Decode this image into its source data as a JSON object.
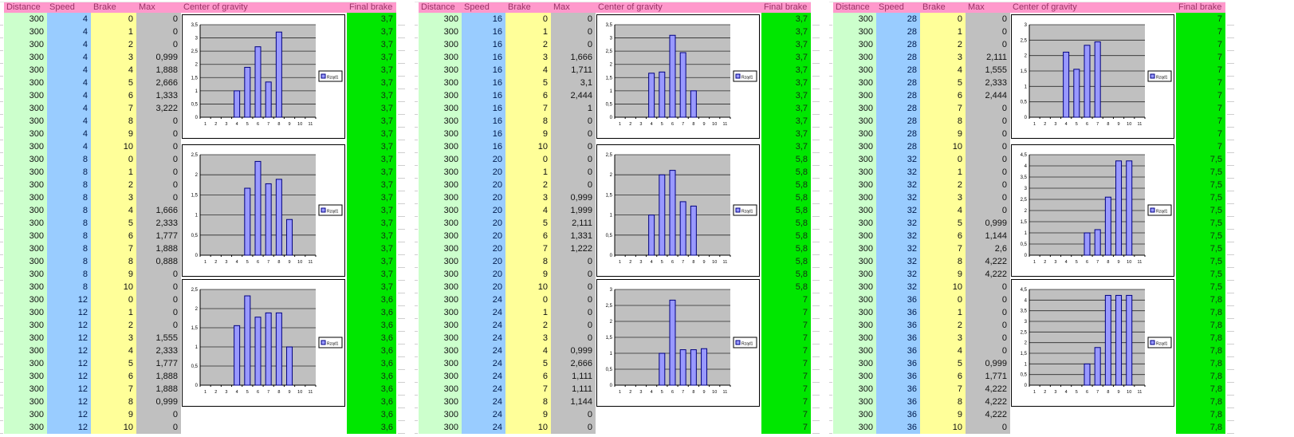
{
  "headers": {
    "distance": "Distance",
    "speed": "Speed",
    "brake": "Brake",
    "max": "Max",
    "cog": "Center of gravity",
    "final": "Final brake"
  },
  "legend_label": "Rząd1",
  "colors": {
    "header_bg": "#FF99CC",
    "header_text": "#993366",
    "distance_bg": "#CCFFCC",
    "speed_bg": "#99CCFF",
    "brake_bg": "#FFFF99",
    "max_bg": "#C0C0C0",
    "final_bg": "#00E700",
    "chart_plot_bg": "#C0C0C0",
    "bar_fill": "#9999FF",
    "bar_border": "#000080"
  },
  "panels": [
    {
      "distance": "300",
      "brake_values": [
        "0",
        "1",
        "2",
        "3",
        "4",
        "5",
        "6",
        "7",
        "8",
        "9",
        "10"
      ],
      "blocks": [
        {
          "speed": "4",
          "final": "3,7",
          "max": [
            "0",
            "0",
            "0",
            "0,999",
            "1,888",
            "2,666",
            "1,333",
            "3,222",
            "0",
            "0",
            "0"
          ]
        },
        {
          "speed": "8",
          "final": "3,7",
          "max": [
            "0",
            "0",
            "0",
            "0",
            "1,666",
            "2,333",
            "1,777",
            "1,888",
            "0,888",
            "0",
            "0"
          ]
        },
        {
          "speed": "12",
          "final": "3,6",
          "max": [
            "0",
            "0",
            "0",
            "1,555",
            "2,333",
            "1,777",
            "1,888",
            "1,888",
            "0,999",
            "0",
            "0"
          ]
        }
      ]
    },
    {
      "distance": "300",
      "brake_values": [
        "0",
        "1",
        "2",
        "3",
        "4",
        "5",
        "6",
        "7",
        "8",
        "9",
        "10"
      ],
      "blocks": [
        {
          "speed": "16",
          "final": "3,7",
          "max": [
            "0",
            "0",
            "0",
            "1,666",
            "1,711",
            "3,1",
            "2,444",
            "1",
            "0",
            "0",
            "0"
          ]
        },
        {
          "speed": "20",
          "final": "5,8",
          "max": [
            "0",
            "0",
            "0",
            "0,999",
            "1,999",
            "2,111",
            "1,331",
            "1,222",
            "0",
            "0",
            "0"
          ]
        },
        {
          "speed": "24",
          "final": "7",
          "max": [
            "0",
            "0",
            "0",
            "0",
            "0,999",
            "2,666",
            "1,111",
            "1,111",
            "1,144",
            "0",
            "0"
          ]
        }
      ]
    },
    {
      "distance": "300",
      "brake_values": [
        "0",
        "1",
        "2",
        "3",
        "4",
        "5",
        "6",
        "7",
        "8",
        "9",
        "10"
      ],
      "blocks": [
        {
          "speed": "28",
          "final": "7",
          "max": [
            "0",
            "0",
            "0",
            "2,111",
            "1,555",
            "2,333",
            "2,444",
            "0",
            "0",
            "0",
            "0"
          ]
        },
        {
          "speed": "32",
          "final": "7,5",
          "max": [
            "0",
            "0",
            "0",
            "0",
            "0",
            "0,999",
            "1,144",
            "2,6",
            "4,222",
            "4,222",
            "0"
          ]
        },
        {
          "speed": "36",
          "final": "7,8",
          "max": [
            "0",
            "0",
            "0",
            "0",
            "0",
            "0,999",
            "1,771",
            "4,222",
            "4,222",
            "4,222",
            "0"
          ]
        }
      ]
    }
  ],
  "chart_data": [
    {
      "type": "bar",
      "title": "",
      "xlabel": "",
      "ylabel": "",
      "legend_position": "right",
      "grid": true,
      "categories": [
        1,
        2,
        3,
        4,
        5,
        6,
        7,
        8,
        9,
        10,
        11
      ],
      "series": [
        {
          "name": "Rząd1",
          "values": [
            0,
            0,
            0,
            0.999,
            1.888,
            2.666,
            1.333,
            3.222,
            0,
            0,
            0
          ]
        }
      ],
      "ylim": [
        0,
        3.5
      ],
      "ytick": 0.5
    },
    {
      "type": "bar",
      "title": "",
      "xlabel": "",
      "ylabel": "",
      "legend_position": "right",
      "grid": true,
      "categories": [
        1,
        2,
        3,
        4,
        5,
        6,
        7,
        8,
        9,
        10,
        11
      ],
      "series": [
        {
          "name": "Rząd1",
          "values": [
            0,
            0,
            0,
            0,
            1.666,
            2.333,
            1.777,
            1.888,
            0.888,
            0,
            0
          ]
        }
      ],
      "ylim": [
        0,
        2.5
      ],
      "ytick": 0.5
    },
    {
      "type": "bar",
      "title": "",
      "xlabel": "",
      "ylabel": "",
      "legend_position": "right",
      "grid": true,
      "categories": [
        1,
        2,
        3,
        4,
        5,
        6,
        7,
        8,
        9,
        10,
        11
      ],
      "series": [
        {
          "name": "Rząd1",
          "values": [
            0,
            0,
            0,
            1.555,
            2.333,
            1.777,
            1.888,
            1.888,
            0.999,
            0,
            0
          ]
        }
      ],
      "ylim": [
        0,
        2.5
      ],
      "ytick": 0.5
    },
    {
      "type": "bar",
      "title": "",
      "xlabel": "",
      "ylabel": "",
      "legend_position": "right",
      "grid": true,
      "categories": [
        1,
        2,
        3,
        4,
        5,
        6,
        7,
        8,
        9,
        10,
        11
      ],
      "series": [
        {
          "name": "Rząd1",
          "values": [
            0,
            0,
            0,
            1.666,
            1.711,
            3.1,
            2.444,
            1,
            0,
            0,
            0
          ]
        }
      ],
      "ylim": [
        0,
        3.5
      ],
      "ytick": 0.5
    },
    {
      "type": "bar",
      "title": "",
      "xlabel": "",
      "ylabel": "",
      "legend_position": "right",
      "grid": true,
      "categories": [
        1,
        2,
        3,
        4,
        5,
        6,
        7,
        8,
        9,
        10,
        11
      ],
      "series": [
        {
          "name": "Rząd1",
          "values": [
            0,
            0,
            0,
            0.999,
            1.999,
            2.111,
            1.331,
            1.222,
            0,
            0,
            0
          ]
        }
      ],
      "ylim": [
        0,
        2.5
      ],
      "ytick": 0.5
    },
    {
      "type": "bar",
      "title": "",
      "xlabel": "",
      "ylabel": "",
      "legend_position": "right",
      "grid": true,
      "categories": [
        1,
        2,
        3,
        4,
        5,
        6,
        7,
        8,
        9,
        10,
        11
      ],
      "series": [
        {
          "name": "Rząd1",
          "values": [
            0,
            0,
            0,
            0,
            0.999,
            2.666,
            1.111,
            1.111,
            1.144,
            0,
            0
          ]
        }
      ],
      "ylim": [
        0,
        3
      ],
      "ytick": 0.5
    },
    {
      "type": "bar",
      "title": "",
      "xlabel": "",
      "ylabel": "",
      "legend_position": "right",
      "grid": true,
      "categories": [
        1,
        2,
        3,
        4,
        5,
        6,
        7,
        8,
        9,
        10,
        11
      ],
      "series": [
        {
          "name": "Rząd1",
          "values": [
            0,
            0,
            0,
            2.111,
            1.555,
            2.333,
            2.444,
            0,
            0,
            0,
            0
          ]
        }
      ],
      "ylim": [
        0,
        3
      ],
      "ytick": 0.5
    },
    {
      "type": "bar",
      "title": "",
      "xlabel": "",
      "ylabel": "",
      "legend_position": "right",
      "grid": true,
      "categories": [
        1,
        2,
        3,
        4,
        5,
        6,
        7,
        8,
        9,
        10,
        11
      ],
      "series": [
        {
          "name": "Rząd1",
          "values": [
            0,
            0,
            0,
            0,
            0,
            0.999,
            1.144,
            2.6,
            4.222,
            4.222,
            0
          ]
        }
      ],
      "ylim": [
        0,
        4.5
      ],
      "ytick": 0.5
    },
    {
      "type": "bar",
      "title": "",
      "xlabel": "",
      "ylabel": "",
      "legend_position": "right",
      "grid": true,
      "categories": [
        1,
        2,
        3,
        4,
        5,
        6,
        7,
        8,
        9,
        10,
        11
      ],
      "series": [
        {
          "name": "Rząd1",
          "values": [
            0,
            0,
            0,
            0,
            0,
            0.999,
            1.771,
            4.222,
            4.222,
            4.222,
            0
          ]
        }
      ],
      "ylim": [
        0,
        4.5
      ],
      "ytick": 0.5
    }
  ]
}
